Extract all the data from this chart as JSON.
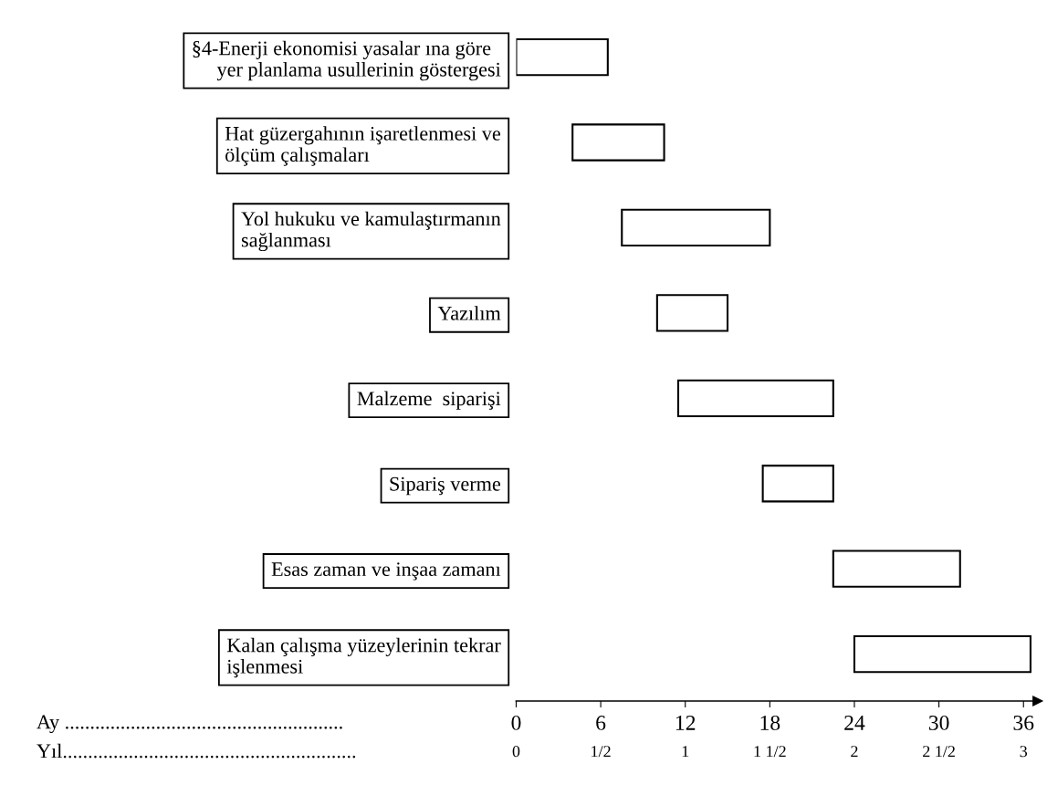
{
  "chart_data": {
    "type": "bar",
    "orientation": "horizontal",
    "categories": [
      "§4-Enerji ekonomisi yasalar ına göre\n     yer planlama usullerinin göstergesi",
      "Hat güzergahının işaretlenmesi ve\nölçüm çalışmaları",
      "Yol hukuku ve kamulaştırmanın\nsağlanması",
      "Yazılım",
      "Malzeme  siparişi",
      "Sipariş verme",
      "Esas zaman ve inşaa zamanı",
      "Kalan çalışma yüzeylerinin tekrar\nişlenmesi"
    ],
    "base": [
      0,
      4,
      7.5,
      10,
      11.5,
      17.5,
      22.5,
      24
    ],
    "values": [
      6.5,
      6.5,
      10.5,
      5,
      11,
      5,
      9,
      12.5
    ],
    "color": "#ffffff",
    "xlim": [
      0,
      37
    ],
    "xticks": [
      0,
      6,
      12,
      18,
      24,
      30,
      36
    ],
    "xlabel": "Ay .......................................................",
    "x2lim": [
      0,
      3.0833
    ],
    "x2ticks": [
      0,
      {
        "value": 0.5,
        "label": "1/2"
      },
      1,
      {
        "value": 1.5,
        "label": "1 1/2"
      },
      2,
      {
        "value": 2.5,
        "label": "2 1/2"
      },
      3
    ],
    "x2label": "Yıl..........................................................",
    "grid": false,
    "legend": false
  }
}
